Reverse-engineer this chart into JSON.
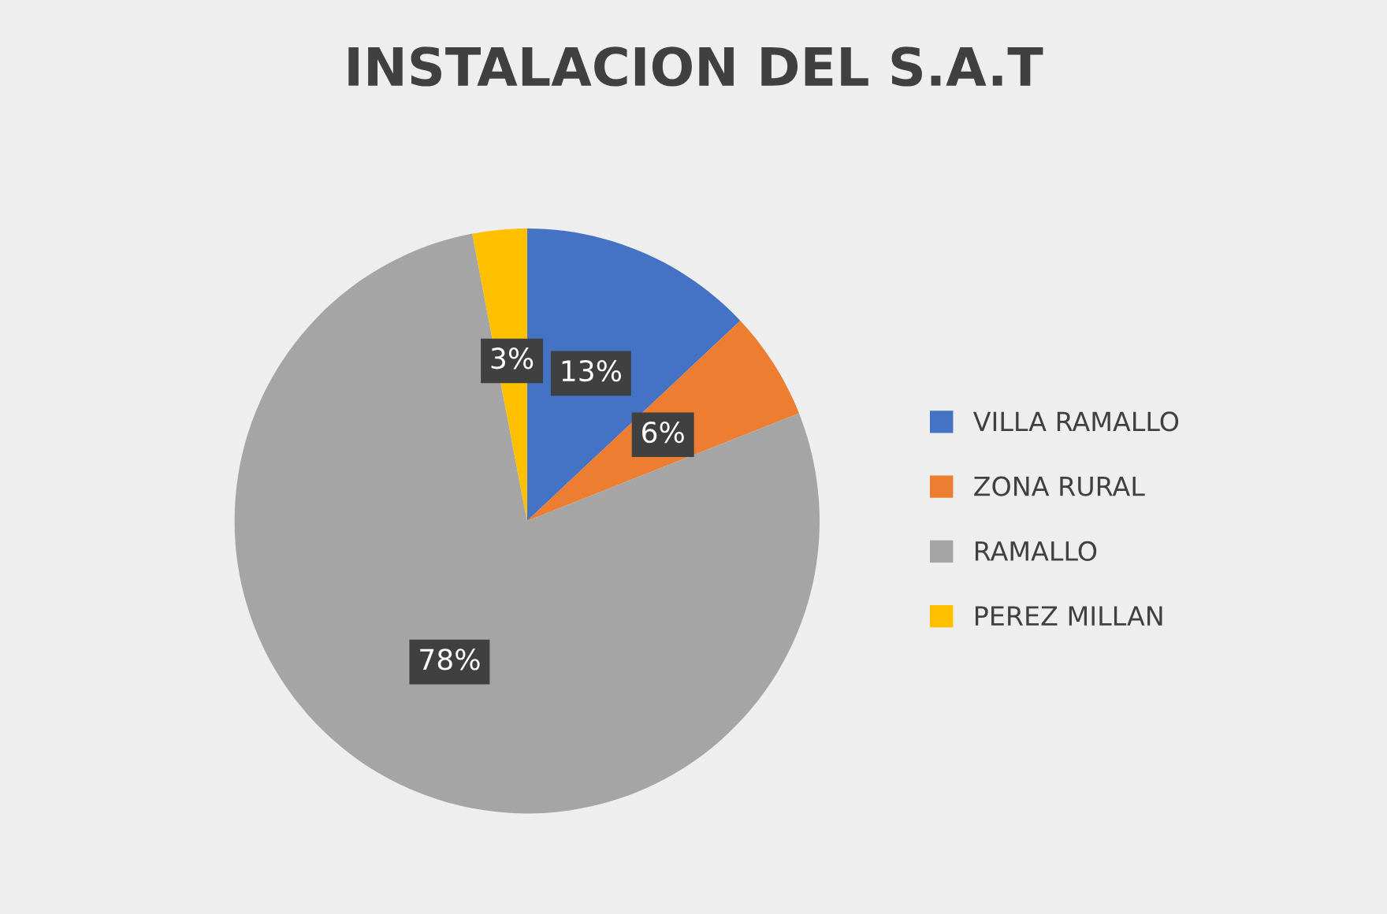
{
  "chart_data": {
    "type": "pie",
    "title": "INSTALACION DEL S.A.T",
    "categories": [
      "VILLA RAMALLO",
      "ZONA RURAL",
      "RAMALLO",
      "PEREZ MILLAN"
    ],
    "values": [
      13,
      6,
      78,
      3
    ],
    "colors": [
      "#4472c4",
      "#ed7d31",
      "#a5a5a5",
      "#ffc000"
    ],
    "value_labels": [
      "13%",
      "6%",
      "78%",
      "3%"
    ],
    "legend": "right"
  }
}
